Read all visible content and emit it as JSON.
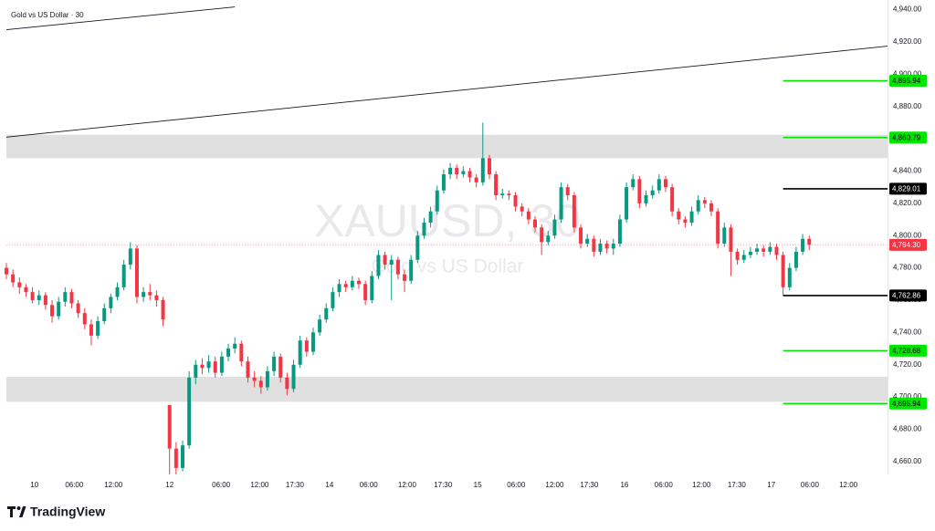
{
  "chart_data": {
    "type": "candlestick",
    "title": "Gold vs US Dollar · 30",
    "watermark": [
      "XAUUSD, 30",
      "Gold vs US Dollar"
    ],
    "brand": "TradingView",
    "up_color": "#089981",
    "down_color": "#f23645",
    "grid": false,
    "xlim": [
      0,
      135
    ],
    "ylim": [
      4652,
      4946
    ],
    "xticks": [
      {
        "value": 4.3,
        "label": "10"
      },
      {
        "value": 10.4,
        "label": "06:00"
      },
      {
        "value": 16.4,
        "label": "12:00"
      },
      {
        "value": 25.0,
        "label": "12"
      },
      {
        "value": 32.9,
        "label": "06:00"
      },
      {
        "value": 38.8,
        "label": "12:00"
      },
      {
        "value": 44.2,
        "label": "17:30"
      },
      {
        "value": 49.5,
        "label": "14"
      },
      {
        "value": 55.5,
        "label": "06:00"
      },
      {
        "value": 61.4,
        "label": "12:00"
      },
      {
        "value": 66.9,
        "label": "17:30"
      },
      {
        "value": 72.2,
        "label": "15"
      },
      {
        "value": 78.1,
        "label": "06:00"
      },
      {
        "value": 84.0,
        "label": "12:00"
      },
      {
        "value": 89.3,
        "label": "17:30"
      },
      {
        "value": 94.7,
        "label": "16"
      },
      {
        "value": 100.7,
        "label": "06:00"
      },
      {
        "value": 106.5,
        "label": "12:00"
      },
      {
        "value": 111.9,
        "label": "17:30"
      },
      {
        "value": 117.2,
        "label": "17"
      },
      {
        "value": 123.1,
        "label": "06:00"
      },
      {
        "value": 129.0,
        "label": "12:00"
      }
    ],
    "yticks": [
      {
        "value": 4660,
        "label": "4,660.00"
      },
      {
        "value": 4680,
        "label": "4,680.00"
      },
      {
        "value": 4700,
        "label": "4,700.00"
      },
      {
        "value": 4720,
        "label": "4,720.00"
      },
      {
        "value": 4740,
        "label": "4,740.00"
      },
      {
        "value": 4760,
        "label": "4,760.00"
      },
      {
        "value": 4780,
        "label": "4,780.00"
      },
      {
        "value": 4800,
        "label": "4,800.00"
      },
      {
        "value": 4820,
        "label": "4,820.00"
      },
      {
        "value": 4840,
        "label": "4,840.00"
      },
      {
        "value": 4860,
        "label": "4,860.00"
      },
      {
        "value": 4880,
        "label": "4,880.00"
      },
      {
        "value": 4900,
        "label": "4,900.00"
      },
      {
        "value": 4920,
        "label": "4,920.00"
      },
      {
        "value": 4940,
        "label": "4,940.00"
      }
    ],
    "zones": [
      {
        "from": 4848,
        "to": 4862.5
      },
      {
        "from": 4697,
        "to": 4712.5
      }
    ],
    "zone_color": "#e0e0e0",
    "trendlines": [
      {
        "x": [
          0,
          35
        ],
        "y": [
          4927.6,
          4941.7
        ]
      },
      {
        "x": [
          0,
          135
        ],
        "y": [
          4861,
          4917.4
        ]
      }
    ],
    "levels": [
      {
        "value": 4895.94,
        "label": "4,895.94",
        "color": "#00e600",
        "start": 119
      },
      {
        "value": 4860.79,
        "label": "4,860.79",
        "color": "#00e600",
        "start": 119
      },
      {
        "value": 4829.01,
        "label": "4,829.01",
        "color": "#000000",
        "start": 119
      },
      {
        "value": 4762.86,
        "label": "4,762.86",
        "color": "#000000",
        "start": 119
      },
      {
        "value": 4728.68,
        "label": "4,728.68",
        "color": "#00e600",
        "start": 119
      },
      {
        "value": 4695.94,
        "label": "4,695.94",
        "color": "#00e600",
        "start": 119
      }
    ],
    "last_price": {
      "value": 4794.3,
      "label": "4,794.30",
      "color": "#f23645"
    },
    "x": [
      0,
      1,
      2,
      3,
      4,
      5,
      6,
      7,
      8,
      9,
      10,
      11,
      12,
      13,
      14,
      15,
      16,
      17,
      18,
      19,
      20,
      21,
      22,
      23,
      24,
      25,
      26,
      27,
      28,
      29,
      30,
      31,
      32,
      33,
      34,
      35,
      36,
      37,
      38,
      39,
      40,
      41,
      42,
      43,
      44,
      45,
      46,
      47,
      48,
      49,
      50,
      51,
      52,
      53,
      54,
      55,
      56,
      57,
      58,
      59,
      60,
      61,
      62,
      63,
      64,
      65,
      66,
      67,
      68,
      69,
      70,
      71,
      72,
      73,
      74,
      75,
      76,
      77,
      78,
      79,
      80,
      81,
      82,
      83,
      84,
      85,
      86,
      87,
      88,
      89,
      90,
      91,
      92,
      93,
      94,
      95,
      96,
      97,
      98,
      99,
      100,
      101,
      102,
      103,
      104,
      105,
      106,
      107,
      108,
      109,
      110,
      111,
      112,
      113,
      114,
      115,
      116,
      117,
      118,
      119,
      120,
      121,
      122,
      123
    ],
    "ohlc": [
      [
        4780,
        4783,
        4773,
        4776
      ],
      [
        4776,
        4779,
        4768,
        4771
      ],
      [
        4771,
        4774,
        4764,
        4768
      ],
      [
        4768,
        4770,
        4762,
        4765
      ],
      [
        4765,
        4768,
        4758,
        4760
      ],
      [
        4760,
        4766,
        4757,
        4763
      ],
      [
        4763,
        4765,
        4754,
        4757
      ],
      [
        4757,
        4760,
        4746,
        4750
      ],
      [
        4750,
        4762,
        4748,
        4759
      ],
      [
        4759,
        4768,
        4756,
        4765
      ],
      [
        4765,
        4767,
        4755,
        4758
      ],
      [
        4758,
        4760,
        4749,
        4752
      ],
      [
        4752,
        4755,
        4742,
        4745
      ],
      [
        4745,
        4748,
        4732,
        4738
      ],
      [
        4738,
        4750,
        4736,
        4747
      ],
      [
        4747,
        4758,
        4745,
        4755
      ],
      [
        4755,
        4764,
        4752,
        4762
      ],
      [
        4762,
        4771,
        4760,
        4768
      ],
      [
        4768,
        4785,
        4766,
        4782
      ],
      [
        4782,
        4796,
        4779,
        4792
      ],
      [
        4792,
        4794,
        4758,
        4762
      ],
      [
        4762,
        4768,
        4759,
        4765
      ],
      [
        4765,
        4770,
        4760,
        4763
      ],
      [
        4763,
        4766,
        4756,
        4760
      ],
      [
        4760,
        4762,
        4744,
        4748
      ],
      [
        4695,
        4695,
        4652,
        4668
      ],
      [
        4668,
        4672,
        4652,
        4656
      ],
      [
        4656,
        4673,
        4654,
        4670
      ],
      [
        4670,
        4716,
        4668,
        4712
      ],
      [
        4712,
        4723,
        4708,
        4720
      ],
      [
        4720,
        4724,
        4714,
        4718
      ],
      [
        4718,
        4726,
        4715,
        4722
      ],
      [
        4722,
        4725,
        4712,
        4715
      ],
      [
        4715,
        4728,
        4713,
        4725
      ],
      [
        4725,
        4733,
        4722,
        4730
      ],
      [
        4730,
        4737,
        4727,
        4733
      ],
      [
        4733,
        4735,
        4719,
        4722
      ],
      [
        4722,
        4725,
        4709,
        4712
      ],
      [
        4712,
        4716,
        4706,
        4710
      ],
      [
        4710,
        4713,
        4702,
        4706
      ],
      [
        4706,
        4719,
        4704,
        4716
      ],
      [
        4716,
        4728,
        4713,
        4725
      ],
      [
        4725,
        4727,
        4709,
        4712
      ],
      [
        4712,
        4715,
        4701,
        4705
      ],
      [
        4705,
        4723,
        4703,
        4720
      ],
      [
        4720,
        4738,
        4718,
        4735
      ],
      [
        4735,
        4737,
        4725,
        4728
      ],
      [
        4728,
        4743,
        4726,
        4740
      ],
      [
        4740,
        4751,
        4738,
        4748
      ],
      [
        4748,
        4758,
        4746,
        4755
      ],
      [
        4755,
        4768,
        4753,
        4765
      ],
      [
        4765,
        4773,
        4762,
        4770
      ],
      [
        4770,
        4772,
        4765,
        4768
      ],
      [
        4768,
        4775,
        4766,
        4772
      ],
      [
        4772,
        4774,
        4767,
        4770
      ],
      [
        4770,
        4772,
        4757,
        4760
      ],
      [
        4760,
        4778,
        4758,
        4775
      ],
      [
        4775,
        4791,
        4773,
        4788
      ],
      [
        4788,
        4790,
        4779,
        4782
      ],
      [
        4782,
        4788,
        4760,
        4785
      ],
      [
        4785,
        4787,
        4773,
        4776
      ],
      [
        4776,
        4779,
        4765,
        4772
      ],
      [
        4772,
        4788,
        4770,
        4785
      ],
      [
        4785,
        4803,
        4783,
        4800
      ],
      [
        4800,
        4811,
        4798,
        4808
      ],
      [
        4808,
        4818,
        4805,
        4815
      ],
      [
        4815,
        4831,
        4813,
        4828
      ],
      [
        4828,
        4841,
        4826,
        4838
      ],
      [
        4838,
        4845,
        4835,
        4842
      ],
      [
        4842,
        4844,
        4835,
        4838
      ],
      [
        4838,
        4843,
        4836,
        4840
      ],
      [
        4840,
        4842,
        4833,
        4836
      ],
      [
        4836,
        4838,
        4830,
        4833
      ],
      [
        4833,
        4870,
        4831,
        4848
      ],
      [
        4848,
        4850,
        4835,
        4838
      ],
      [
        4838,
        4840,
        4822,
        4825
      ],
      [
        4825,
        4829,
        4823,
        4826
      ],
      [
        4826,
        4828,
        4822,
        4825
      ],
      [
        4825,
        4827,
        4815,
        4818
      ],
      [
        4818,
        4820,
        4812,
        4815
      ],
      [
        4815,
        4817,
        4807,
        4810
      ],
      [
        4810,
        4812,
        4802,
        4805
      ],
      [
        4805,
        4807,
        4788,
        4796
      ],
      [
        4796,
        4803,
        4794,
        4800
      ],
      [
        4800,
        4813,
        4798,
        4810
      ],
      [
        4810,
        4833,
        4808,
        4830
      ],
      [
        4830,
        4832,
        4822,
        4825
      ],
      [
        4825,
        4827,
        4802,
        4805
      ],
      [
        4805,
        4807,
        4792,
        4795
      ],
      [
        4795,
        4801,
        4793,
        4798
      ],
      [
        4798,
        4800,
        4787,
        4790
      ],
      [
        4790,
        4798,
        4788,
        4795
      ],
      [
        4795,
        4797,
        4789,
        4792
      ],
      [
        4792,
        4798,
        4788,
        4795
      ],
      [
        4795,
        4813,
        4793,
        4810
      ],
      [
        4810,
        4833,
        4808,
        4830
      ],
      [
        4830,
        4838,
        4828,
        4835
      ],
      [
        4835,
        4837,
        4817,
        4820
      ],
      [
        4820,
        4828,
        4818,
        4825
      ],
      [
        4825,
        4831,
        4823,
        4828
      ],
      [
        4828,
        4838,
        4826,
        4835
      ],
      [
        4835,
        4837,
        4827,
        4830
      ],
      [
        4830,
        4832,
        4812,
        4815
      ],
      [
        4815,
        4817,
        4807,
        4810
      ],
      [
        4810,
        4812,
        4805,
        4808
      ],
      [
        4808,
        4818,
        4806,
        4815
      ],
      [
        4815,
        4825,
        4813,
        4822
      ],
      [
        4822,
        4824,
        4817,
        4820
      ],
      [
        4820,
        4822,
        4812,
        4815
      ],
      [
        4815,
        4817,
        4792,
        4795
      ],
      [
        4795,
        4808,
        4793,
        4805
      ],
      [
        4805,
        4807,
        4775,
        4790
      ],
      [
        4790,
        4792,
        4782,
        4785
      ],
      [
        4785,
        4791,
        4783,
        4788
      ],
      [
        4788,
        4793,
        4786,
        4790
      ],
      [
        4790,
        4795,
        4788,
        4792
      ],
      [
        4792,
        4794,
        4787,
        4790
      ],
      [
        4790,
        4796,
        4788,
        4793
      ],
      [
        4793,
        4795,
        4785,
        4788
      ],
      [
        4788,
        4790,
        4763,
        4768
      ],
      [
        4768,
        4783,
        4766,
        4780
      ],
      [
        4780,
        4793,
        4778,
        4790
      ],
      [
        4790,
        4801,
        4788,
        4798
      ],
      [
        4798,
        4800,
        4791,
        4794.3
      ]
    ]
  }
}
